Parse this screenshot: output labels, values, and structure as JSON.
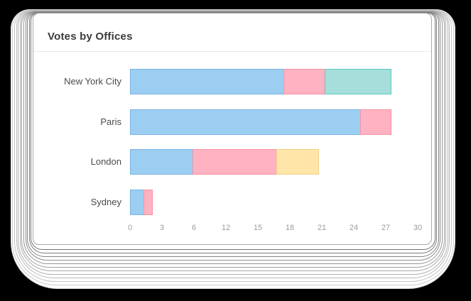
{
  "background_color": "#000000",
  "card": {
    "background_color": "#ffffff",
    "border_color": "#a8a8a8"
  },
  "chart_data": {
    "type": "bar",
    "orientation": "horizontal",
    "stacked": true,
    "title": "Votes by Offices",
    "categories": [
      "New York City",
      "Paris",
      "London",
      "Sydney"
    ],
    "x_tick_labels": [
      "0",
      "3",
      "6",
      "12",
      "15",
      "18",
      "21",
      "24",
      "27",
      "30"
    ],
    "xlim": [
      0,
      30
    ],
    "grid": false,
    "legend_position": "none",
    "series": [
      {
        "name": "blue",
        "fill": "#9CCEF2",
        "border": "#79B3E3",
        "values": [
          16.1,
          24.1,
          6.6,
          1.5
        ]
      },
      {
        "name": "pink",
        "fill": "#FFB2C1",
        "border": "#F793A6",
        "values": [
          4.4,
          3.3,
          8.9,
          1.0
        ]
      },
      {
        "name": "teal",
        "fill": "#A6DEDB",
        "border": "#5FC8C2",
        "values": [
          7.0,
          0,
          0,
          0
        ]
      },
      {
        "name": "yellow",
        "fill": "#FFE5A8",
        "border": "#EFD089",
        "values": [
          0,
          0,
          4.4,
          0
        ]
      }
    ]
  }
}
